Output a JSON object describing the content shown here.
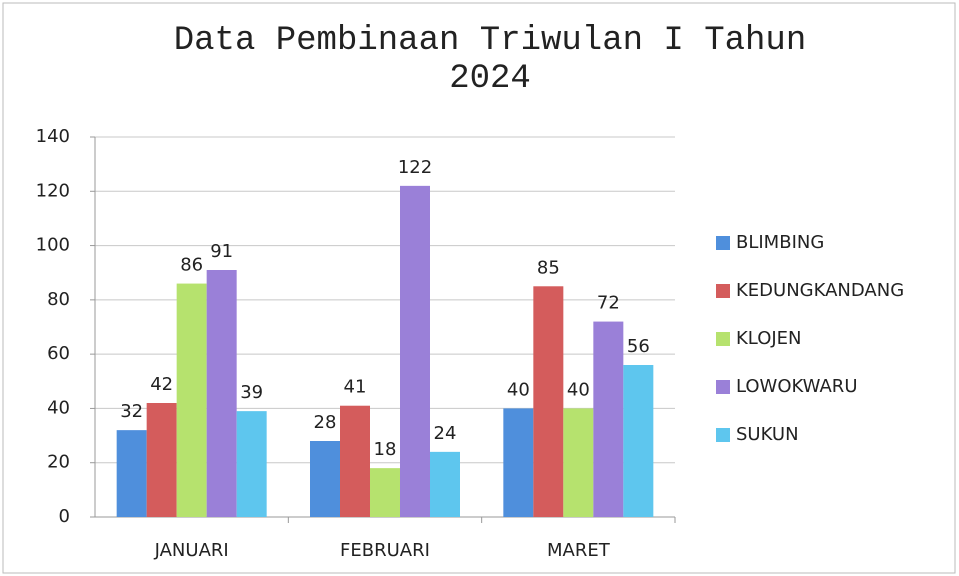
{
  "chart_data": {
    "type": "bar",
    "title": "Data Pembinaan Triwulan I Tahun 2024",
    "categories": [
      "JANUARI",
      "FEBRUARI",
      "MARET"
    ],
    "series": [
      {
        "name": "BLIMBING",
        "color": "#4f8fdc",
        "values": [
          32,
          28,
          40
        ]
      },
      {
        "name": "KEDUNGKANDANG",
        "color": "#d45c5c",
        "values": [
          42,
          41,
          85
        ]
      },
      {
        "name": "KLOJEN",
        "color": "#b6e26e",
        "values": [
          86,
          18,
          40
        ]
      },
      {
        "name": "LOWOKWARU",
        "color": "#9a80d8",
        "values": [
          91,
          122,
          72
        ]
      },
      {
        "name": "SUKUN",
        "color": "#5ec6ee",
        "values": [
          39,
          24,
          56
        ]
      }
    ],
    "ylim": [
      0,
      140
    ],
    "yticks": [
      0,
      20,
      40,
      60,
      80,
      100,
      120,
      140
    ],
    "grid": true,
    "legend": "right"
  }
}
